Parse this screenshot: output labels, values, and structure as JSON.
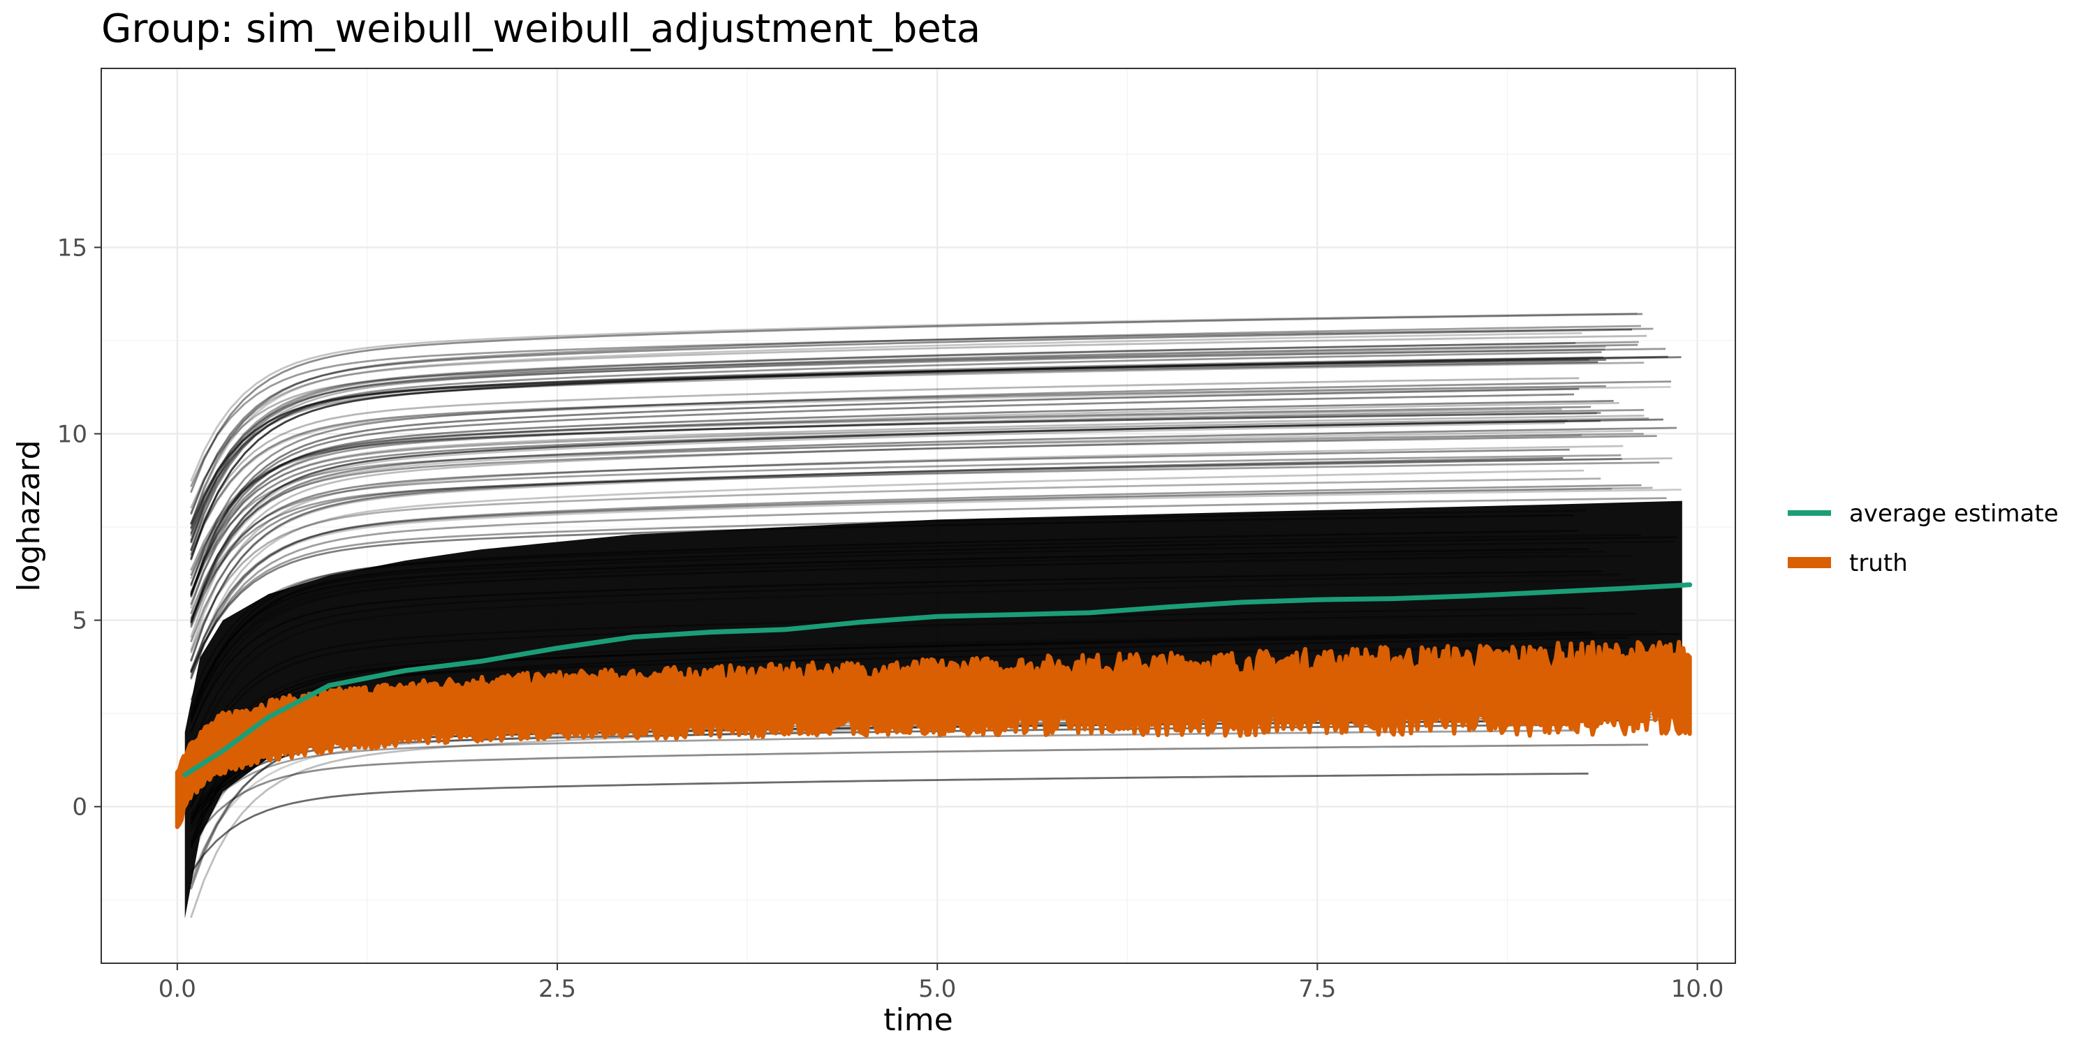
{
  "chart_data": {
    "type": "line",
    "title": "Group: sim_weibull_weibull_adjustment_beta",
    "xlabel": "time",
    "ylabel": "loghazard",
    "xlim": [
      -0.5,
      10.25
    ],
    "ylim": [
      -4.2,
      19.8
    ],
    "x_ticks": [
      0.0,
      2.5,
      5.0,
      7.5,
      10.0
    ],
    "x_tick_labels": [
      "0.0",
      "2.5",
      "5.0",
      "7.5",
      "10.0"
    ],
    "y_ticks": [
      0,
      5,
      10,
      15
    ],
    "y_tick_labels": [
      "0",
      "5",
      "10",
      "15"
    ],
    "grid": true,
    "legend_position": "right",
    "series": [
      {
        "name": "average estimate",
        "color": "#1b9e77",
        "x": [
          0.05,
          0.3,
          0.6,
          1.0,
          1.5,
          2.0,
          2.5,
          3.0,
          3.5,
          4.0,
          4.5,
          5.0,
          5.5,
          6.0,
          6.5,
          7.0,
          7.5,
          8.0,
          8.5,
          9.0,
          9.5,
          9.95
        ],
        "y": [
          0.85,
          1.5,
          2.4,
          3.25,
          3.65,
          3.9,
          4.25,
          4.55,
          4.68,
          4.75,
          4.95,
          5.1,
          5.15,
          5.2,
          5.35,
          5.48,
          5.55,
          5.58,
          5.65,
          5.75,
          5.85,
          5.95
        ]
      },
      {
        "name": "truth",
        "color": "#d95f02",
        "x": [
          0.0,
          0.1,
          0.3,
          0.6,
          1.0,
          1.5,
          2.0,
          3.0,
          4.0,
          5.0,
          6.0,
          7.0,
          8.0,
          9.0,
          9.95
        ],
        "y_lower": [
          -0.5,
          0.4,
          1.0,
          1.35,
          1.6,
          1.8,
          1.9,
          2.0,
          2.1,
          2.15,
          2.2,
          2.2,
          2.25,
          2.25,
          2.3
        ],
        "y_upper": [
          1.0,
          1.8,
          2.4,
          2.75,
          3.0,
          3.2,
          3.35,
          3.5,
          3.6,
          3.7,
          3.8,
          3.85,
          3.95,
          4.0,
          4.05
        ]
      },
      {
        "name": "",
        "color": "#000000",
        "x": [
          0.05,
          0.15,
          0.3,
          0.6,
          1.0,
          1.5,
          2.0,
          3.0,
          4.0,
          5.0,
          6.0,
          7.0,
          8.0,
          9.0,
          9.9
        ],
        "y_lower": [
          -3.0,
          -0.8,
          0.4,
          1.3,
          2.0,
          2.4,
          2.6,
          2.9,
          3.1,
          3.25,
          3.35,
          3.45,
          3.5,
          3.55,
          3.6
        ],
        "y_upper": [
          2.0,
          4.0,
          5.0,
          5.7,
          6.2,
          6.6,
          6.9,
          7.3,
          7.5,
          7.7,
          7.8,
          7.9,
          8.0,
          8.1,
          8.2
        ]
      }
    ]
  },
  "legend": {
    "items": [
      {
        "label": "average estimate",
        "color": "#1b9e77"
      },
      {
        "label": "truth",
        "color": "#d95f02"
      }
    ]
  }
}
